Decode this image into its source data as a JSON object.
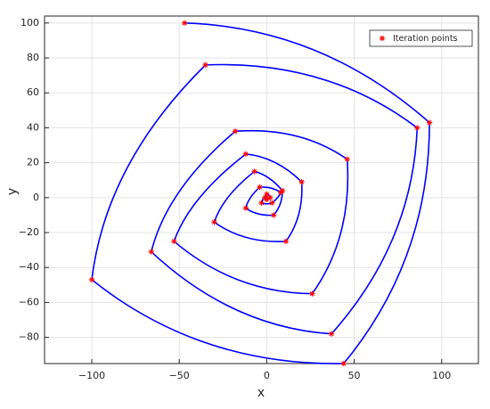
{
  "chart_data": {
    "type": "line",
    "xlabel": "x",
    "ylabel": "y",
    "x": [
      -47,
      93,
      44,
      -100,
      -35,
      86,
      37,
      -66,
      -18,
      46,
      26,
      -53,
      -12,
      20,
      11,
      -30,
      -7,
      9,
      4,
      -12,
      -4,
      8,
      3,
      -3,
      0,
      2,
      0,
      -1,
      0
    ],
    "series": [
      {
        "name": "Iteration points",
        "color": "#ff0000",
        "line_color": "#0000ff",
        "values": [
          100,
          43,
          -95,
          -47,
          76,
          40,
          -78,
          -31,
          38,
          22,
          -55,
          -25,
          25,
          9,
          -25,
          -14,
          15,
          4,
          -10,
          -6,
          6,
          3,
          -3,
          -3,
          2,
          0,
          -1,
          0,
          0
        ]
      }
    ],
    "xlim": [
      -127,
      121
    ],
    "ylim": [
      -95,
      104
    ],
    "xticks": [
      {
        "value": -100,
        "label": "−100"
      },
      {
        "value": -50,
        "label": "−50"
      },
      0,
      50,
      100
    ],
    "yticks": [
      {
        "value": -80,
        "label": "−80"
      },
      {
        "value": -60,
        "label": "−60"
      },
      {
        "value": -40,
        "label": "−40"
      },
      {
        "value": -20,
        "label": "−20"
      },
      0,
      20,
      40,
      60,
      80,
      100
    ],
    "grid": true,
    "legend": "northeast"
  }
}
